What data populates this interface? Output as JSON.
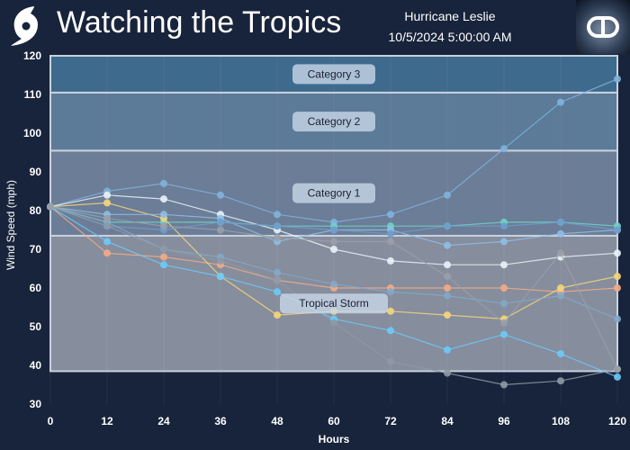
{
  "header": {
    "title": "Watching the Tropics",
    "storm_name": "Hurricane Leslie",
    "timestamp": "10/5/2024 5:00:00 AM",
    "logo_icon": "hurricane-icon",
    "brand_icon": "dd-logo-icon"
  },
  "chart_data": {
    "type": "line",
    "xlabel": "Hours",
    "ylabel": "Wind Speed (mph)",
    "xlim": [
      0,
      120
    ],
    "ylim": [
      30,
      120
    ],
    "x": [
      0,
      12,
      24,
      36,
      48,
      60,
      72,
      84,
      96,
      108,
      120
    ],
    "xticks": [
      "0",
      "12",
      "24",
      "36",
      "48",
      "60",
      "72",
      "84",
      "96",
      "108",
      "120"
    ],
    "yticks": [
      "30",
      "40",
      "50",
      "60",
      "70",
      "80",
      "90",
      "100",
      "110",
      "120"
    ],
    "bands": [
      {
        "label": "Tropical Storm",
        "min": 39,
        "max": 73,
        "color": "#868d9d"
      },
      {
        "label": "Category 1",
        "min": 74,
        "max": 95,
        "color": "#6c7d97"
      },
      {
        "label": "Category 2",
        "min": 96,
        "max": 110,
        "color": "#5b7b98"
      },
      {
        "label": "Category 3",
        "min": 111,
        "max": 120,
        "color": "#3e6a8d"
      }
    ],
    "series": [
      {
        "color": "#7fb2dc",
        "values": [
          81,
          85,
          87,
          84,
          79,
          77,
          79,
          84,
          96,
          108,
          114
        ]
      },
      {
        "color": "#e8f2f8",
        "values": [
          81,
          84,
          83,
          79,
          75,
          70,
          67,
          66,
          66,
          68,
          69
        ]
      },
      {
        "color": "#6ed3c6",
        "values": [
          81,
          77,
          77,
          77,
          76,
          76,
          76,
          76,
          77,
          77,
          76
        ]
      },
      {
        "color": "#f2ab86",
        "values": [
          81,
          69,
          68,
          66,
          62,
          60,
          60,
          60,
          60,
          59,
          60
        ]
      },
      {
        "color": "#f4d67a",
        "values": [
          81,
          82,
          78,
          63,
          53,
          54,
          54,
          53,
          52,
          60,
          63
        ]
      },
      {
        "color": "#6ccafa",
        "values": [
          81,
          72,
          66,
          63,
          59,
          52,
          49,
          44,
          48,
          43,
          37
        ]
      },
      {
        "color": "#8cbfe6",
        "values": [
          81,
          79,
          79,
          78,
          72,
          75,
          75,
          71,
          72,
          74,
          75
        ]
      },
      {
        "color": "#6e9ccb",
        "values": [
          81,
          76,
          75,
          77,
          76,
          75,
          74,
          76,
          76,
          77,
          75
        ]
      },
      {
        "color": "#82a9c9",
        "values": [
          81,
          77,
          70,
          68,
          64,
          61,
          59,
          58,
          56,
          58,
          52
        ]
      },
      {
        "color": "#8d9aa6",
        "values": [
          81,
          76,
          70,
          67,
          62,
          51,
          41,
          38,
          35,
          36,
          39
        ]
      },
      {
        "color": "#9aa0a8",
        "values": [
          81,
          78,
          76,
          75,
          73,
          72,
          72,
          63,
          51,
          69,
          39
        ]
      }
    ]
  }
}
